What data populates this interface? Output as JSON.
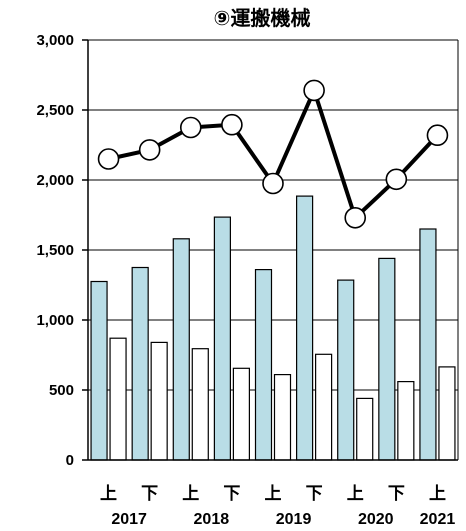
{
  "chart_data": {
    "type": "bar+line",
    "title": "⑨運搬機械",
    "categories": [
      "上",
      "下",
      "上",
      "下",
      "上",
      "下",
      "上",
      "下",
      "上"
    ],
    "year_labels": [
      {
        "label": "2017",
        "index": 0.5
      },
      {
        "label": "2018",
        "index": 2.5
      },
      {
        "label": "2019",
        "index": 4.5
      },
      {
        "label": "2020",
        "index": 6.5
      },
      {
        "label": "2021",
        "index": 8
      }
    ],
    "ylim": [
      0,
      3000
    ],
    "yticks": [
      0,
      500,
      1000,
      1500,
      2000,
      2500,
      3000
    ],
    "ytick_labels": [
      "0",
      "500",
      "1,000",
      "1,500",
      "2,000",
      "2,500",
      "3,000"
    ],
    "grid": true,
    "series": [
      {
        "type": "bar",
        "color": "#b9dde6",
        "values": [
          1275,
          1375,
          1580,
          1735,
          1360,
          1885,
          1285,
          1440,
          1650
        ]
      },
      {
        "type": "bar",
        "color": "#ffffff",
        "values": [
          870,
          840,
          795,
          655,
          610,
          755,
          440,
          560,
          665
        ]
      },
      {
        "type": "line",
        "color": "#000000",
        "marker": "open-circle",
        "values": [
          2150,
          2215,
          2375,
          2395,
          1975,
          2640,
          1730,
          2005,
          2320
        ]
      }
    ]
  }
}
